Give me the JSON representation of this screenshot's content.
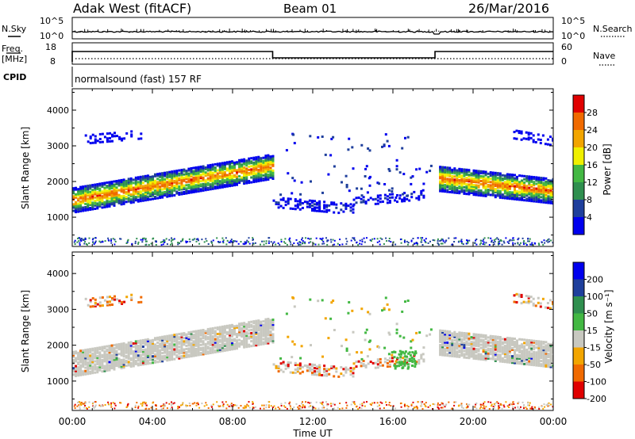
{
  "header": {
    "radar": "Adak West (fitACF)",
    "beam": "Beam 01",
    "date": "26/Mar/2016"
  },
  "params": {
    "nsky_label": "N.Sky",
    "nsky_ticks": [
      "10^5",
      "10^0"
    ],
    "nsearch_label": "N.Search",
    "nsearch_ticks": [
      "10^5",
      "10^0"
    ],
    "freq_label": "Freq.",
    "freq_unit": "[MHz]",
    "freq_ticks": [
      "18",
      "8"
    ],
    "nave_label": "Nave",
    "nave_ticks": [
      "60",
      "0"
    ],
    "cpid_label": "CPID",
    "cpid_text": "normalsound (fast) 157 RF"
  },
  "colors": {
    "power": [
      "#0000ee",
      "#1f3f9c",
      "#2f8f4f",
      "#43b843",
      "#f0f000",
      "#f2a500",
      "#f06a00",
      "#e00000"
    ],
    "velocity": [
      "#e00000",
      "#f06a00",
      "#f2a500",
      "#c8c8c0",
      "#43b843",
      "#2f8f4f",
      "#1f3f9c",
      "#0000ee"
    ],
    "ground_scatter": "#c8c8c0"
  },
  "chart_data": [
    {
      "type": "heatmap",
      "name": "power",
      "title": "",
      "xlabel": "",
      "ylabel": "Slant Range [km]",
      "xlim": [
        0,
        24
      ],
      "ylim": [
        180,
        4600
      ],
      "yticks": [
        1000,
        2000,
        3000,
        4000
      ],
      "colorbar": {
        "label": "Power [dB]",
        "ticks": [
          "4",
          "8",
          "12",
          "16",
          "20",
          "24",
          "28"
        ],
        "range": [
          0,
          32
        ]
      },
      "echo_regions": [
        {
          "t_start": 0.0,
          "t_end": 10.0,
          "range_center_start": 1450,
          "range_center_end": 2400,
          "width": 700,
          "peak_db": 30
        },
        {
          "t_start": 18.3,
          "t_end": 24.0,
          "range_center_start": 2050,
          "range_center_end": 1700,
          "width": 700,
          "peak_db": 30
        },
        {
          "t_start": 10.0,
          "t_end": 14.0,
          "range_center_start": 1400,
          "range_center_end": 1200,
          "width": 300,
          "peak_db": 8
        },
        {
          "t_start": 14.0,
          "t_end": 17.5,
          "range_center_start": 1400,
          "range_center_end": 1600,
          "width": 250,
          "peak_db": 8
        },
        {
          "t_start": 0.5,
          "t_end": 3.5,
          "range_center_start": 3150,
          "range_center_end": 3300,
          "width": 250,
          "peak_db": 6
        },
        {
          "t_start": 22.0,
          "t_end": 24.0,
          "range_center_start": 3300,
          "range_center_end": 3100,
          "width": 250,
          "peak_db": 6
        }
      ]
    },
    {
      "type": "heatmap",
      "name": "velocity",
      "title": "",
      "xlabel": "Time UT",
      "ylabel": "Slant Range [km]",
      "xlim": [
        0,
        24
      ],
      "ylim": [
        180,
        4600
      ],
      "yticks": [
        1000,
        2000,
        3000,
        4000
      ],
      "xticks": [
        "00:00",
        "04:00",
        "08:00",
        "12:00",
        "16:00",
        "20:00",
        "00:00"
      ],
      "xtick_hours": [
        0,
        4,
        8,
        12,
        16,
        20,
        24
      ],
      "colorbar": {
        "label": "Velocity [m s⁻¹]",
        "ticks": [
          "200",
          "100",
          "50",
          "15",
          "-15",
          "-50",
          "-100",
          "-200"
        ]
      }
    }
  ]
}
